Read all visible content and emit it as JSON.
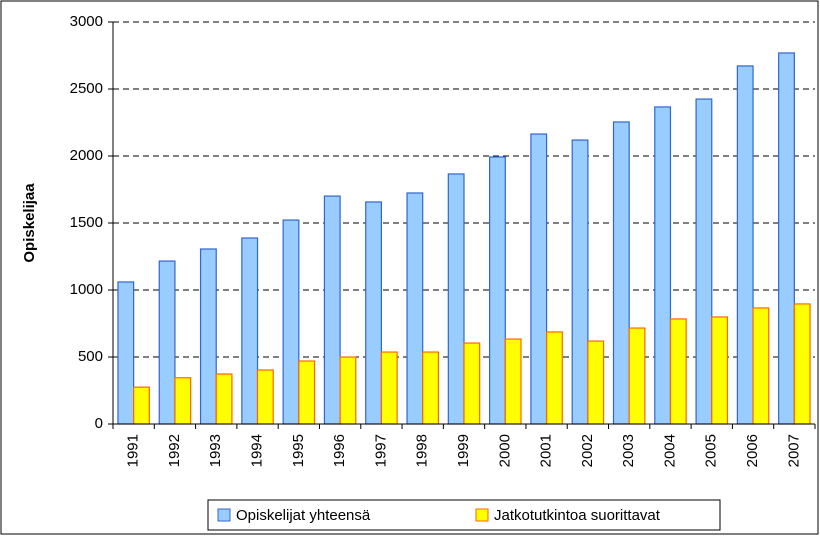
{
  "chart_data": {
    "type": "bar",
    "y_label": "Opiskelijaa",
    "categories": [
      "1991",
      "1992",
      "1993",
      "1994",
      "1995",
      "1996",
      "1997",
      "1998",
      "1999",
      "2000",
      "2001",
      "2002",
      "2003",
      "2004",
      "2005",
      "2006",
      "2007"
    ],
    "series": [
      {
        "name": "Opiskelijat yhteensä",
        "color": "#99ccff",
        "stroke": "#3366cc",
        "values": [
          1060,
          1216,
          1306,
          1388,
          1522,
          1701,
          1657,
          1724,
          1866,
          1993,
          2164,
          2119,
          2254,
          2366,
          2425,
          2672,
          2769
        ]
      },
      {
        "name": "Jatkotutkintoa suorittavat",
        "color": "#ffff00",
        "stroke": "#ff6600",
        "values": [
          275,
          345,
          373,
          403,
          470,
          500,
          537,
          537,
          604,
          634,
          687,
          619,
          716,
          784,
          799,
          866,
          896
        ]
      }
    ],
    "ylim": [
      0,
      3000
    ],
    "yticks": [
      0,
      500,
      1000,
      1500,
      2000,
      2500,
      3000
    ],
    "grid": true,
    "legend": "bottom"
  }
}
